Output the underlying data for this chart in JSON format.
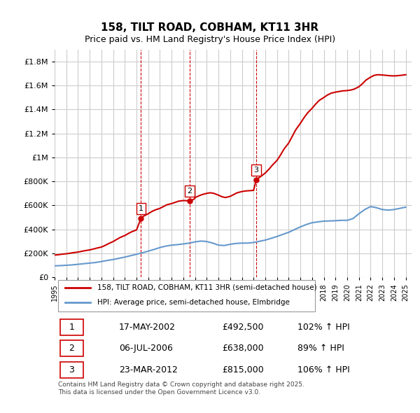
{
  "title": "158, TILT ROAD, COBHAM, KT11 3HR",
  "subtitle": "Price paid vs. HM Land Registry's House Price Index (HPI)",
  "ylabel_ticks": [
    "£0",
    "£200K",
    "£400K",
    "£600K",
    "£800K",
    "£1M",
    "£1.2M",
    "£1.4M",
    "£1.6M",
    "£1.8M"
  ],
  "ytick_values": [
    0,
    200000,
    400000,
    600000,
    800000,
    1000000,
    1200000,
    1400000,
    1600000,
    1800000
  ],
  "ylim": [
    0,
    1900000
  ],
  "xlim_start": 1995.0,
  "xlim_end": 2025.5,
  "legend_line1": "158, TILT ROAD, COBHAM, KT11 3HR (semi-detached house)",
  "legend_line2": "HPI: Average price, semi-detached house, Elmbridge",
  "sale1_date": "17-MAY-2002",
  "sale1_price": "£492,500",
  "sale1_pct": "102% ↑ HPI",
  "sale2_date": "06-JUL-2006",
  "sale2_price": "£638,000",
  "sale2_pct": "89% ↑ HPI",
  "sale3_date": "23-MAR-2012",
  "sale3_price": "£815,000",
  "sale3_pct": "106% ↑ HPI",
  "footer": "Contains HM Land Registry data © Crown copyright and database right 2025.\nThis data is licensed under the Open Government Licence v3.0.",
  "line_color_red": "#cc0000",
  "line_color_blue": "#6699cc",
  "bg_color": "#ffffff",
  "grid_color": "#cccccc",
  "dashed_color": "#cc0000",
  "sale1_x": 2002.38,
  "sale2_x": 2006.52,
  "sale3_x": 2012.23,
  "hpi_years": [
    1995,
    1995.5,
    1996,
    1996.5,
    1997,
    1997.5,
    1998,
    1998.5,
    1999,
    1999.5,
    2000,
    2000.5,
    2001,
    2001.5,
    2002,
    2002.5,
    2003,
    2003.5,
    2004,
    2004.5,
    2005,
    2005.5,
    2006,
    2006.5,
    2007,
    2007.5,
    2008,
    2008.5,
    2009,
    2009.5,
    2010,
    2010.5,
    2011,
    2011.5,
    2012,
    2012.5,
    2013,
    2013.5,
    2014,
    2014.5,
    2015,
    2015.5,
    2016,
    2016.5,
    2017,
    2017.5,
    2018,
    2018.5,
    2019,
    2019.5,
    2020,
    2020.5,
    2021,
    2021.5,
    2022,
    2022.5,
    2023,
    2023.5,
    2024,
    2024.5,
    2025
  ],
  "hpi_values": [
    95000,
    97000,
    100000,
    103000,
    108000,
    113000,
    118000,
    123000,
    131000,
    140000,
    148000,
    158000,
    168000,
    180000,
    192000,
    204000,
    218000,
    232000,
    248000,
    260000,
    268000,
    272000,
    278000,
    285000,
    295000,
    302000,
    298000,
    285000,
    268000,
    265000,
    275000,
    282000,
    285000,
    285000,
    290000,
    300000,
    310000,
    325000,
    340000,
    358000,
    375000,
    398000,
    420000,
    440000,
    455000,
    462000,
    468000,
    470000,
    472000,
    475000,
    475000,
    490000,
    530000,
    565000,
    590000,
    580000,
    565000,
    560000,
    565000,
    575000,
    585000
  ],
  "price_years": [
    1995.0,
    1995.3,
    1995.6,
    1996.0,
    1996.3,
    1996.6,
    1997.0,
    1997.3,
    1997.6,
    1998.0,
    1998.3,
    1998.6,
    1999.0,
    1999.3,
    1999.6,
    2000.0,
    2000.3,
    2000.6,
    2001.0,
    2001.3,
    2001.6,
    2002.0,
    2002.38,
    2002.6,
    2003.0,
    2003.3,
    2003.6,
    2004.0,
    2004.3,
    2004.6,
    2005.0,
    2005.3,
    2005.6,
    2006.0,
    2006.52,
    2006.9,
    2007.0,
    2007.3,
    2007.6,
    2008.0,
    2008.3,
    2008.6,
    2009.0,
    2009.3,
    2009.6,
    2010.0,
    2010.3,
    2010.6,
    2011.0,
    2011.3,
    2011.6,
    2012.0,
    2012.23,
    2012.6,
    2013.0,
    2013.3,
    2013.6,
    2014.0,
    2014.3,
    2014.6,
    2015.0,
    2015.3,
    2015.6,
    2016.0,
    2016.3,
    2016.6,
    2017.0,
    2017.3,
    2017.6,
    2018.0,
    2018.3,
    2018.6,
    2019.0,
    2019.3,
    2019.6,
    2020.0,
    2020.3,
    2020.6,
    2021.0,
    2021.3,
    2021.6,
    2022.0,
    2022.3,
    2022.6,
    2023.0,
    2023.3,
    2023.6,
    2024.0,
    2024.3,
    2024.6,
    2025.0
  ],
  "price_values": [
    185000,
    188000,
    192000,
    196000,
    200000,
    205000,
    210000,
    216000,
    222000,
    228000,
    235000,
    243000,
    252000,
    265000,
    280000,
    298000,
    315000,
    332000,
    348000,
    365000,
    380000,
    395000,
    492500,
    510000,
    530000,
    548000,
    562000,
    575000,
    590000,
    605000,
    615000,
    625000,
    635000,
    640000,
    638000,
    650000,
    665000,
    678000,
    690000,
    700000,
    705000,
    700000,
    685000,
    672000,
    665000,
    675000,
    690000,
    705000,
    715000,
    720000,
    722000,
    725000,
    815000,
    840000,
    870000,
    900000,
    935000,
    975000,
    1020000,
    1070000,
    1120000,
    1175000,
    1230000,
    1285000,
    1330000,
    1370000,
    1410000,
    1445000,
    1475000,
    1500000,
    1520000,
    1535000,
    1545000,
    1550000,
    1555000,
    1558000,
    1562000,
    1570000,
    1590000,
    1615000,
    1645000,
    1670000,
    1685000,
    1690000,
    1688000,
    1685000,
    1682000,
    1680000,
    1682000,
    1685000,
    1690000
  ]
}
